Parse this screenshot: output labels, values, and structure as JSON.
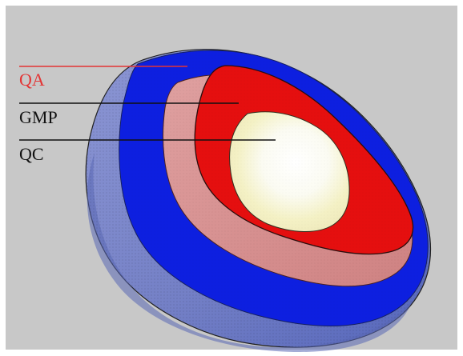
{
  "labels": {
    "qa": "QA",
    "gmp": "GMP",
    "qc": "QC"
  },
  "colors": {
    "background": "#c8c8c8",
    "qa_text": "#e33434",
    "gmp_text": "#111111",
    "qc_text": "#111111",
    "outer_shell": "#8791cf",
    "outer_shell_shadow": "#5b6ab9",
    "blue_layer": "#0d1fe0",
    "pink_layer": "#d78d8d",
    "red_layer": "#e50f0f",
    "inner_core_edge": "#f1f0c0",
    "inner_core_center": "#ffffff"
  }
}
